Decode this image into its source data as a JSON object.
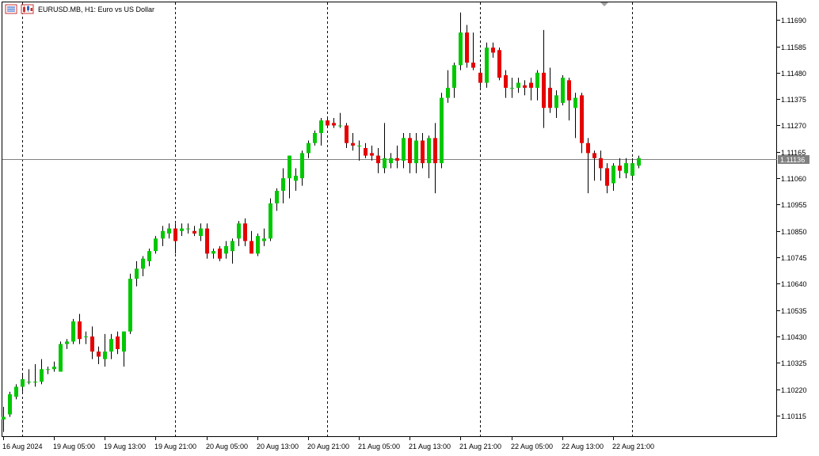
{
  "chart_data": {
    "type": "candlestick",
    "symbol": "EURUSD.MB",
    "timeframe": "H1",
    "description": "Euro vs US Dollar",
    "title": "EURUSD.MB, H1:  Euro vs US Dollar",
    "ylim": [
      1.1003,
      1.1176
    ],
    "grid": false,
    "current_price": 1.11136,
    "current_price_label": "1.11136",
    "y_ticks": [
      {
        "value": 1.1169,
        "label": "1.11690"
      },
      {
        "value": 1.11585,
        "label": "1.11585"
      },
      {
        "value": 1.1148,
        "label": "1.11480"
      },
      {
        "value": 1.11375,
        "label": "1.11375"
      },
      {
        "value": 1.1127,
        "label": "1.11270"
      },
      {
        "value": 1.11165,
        "label": "1.11165"
      },
      {
        "value": 1.1106,
        "label": "1.11060"
      },
      {
        "value": 1.10955,
        "label": "1.10955"
      },
      {
        "value": 1.1085,
        "label": "1.10850"
      },
      {
        "value": 1.10745,
        "label": "1.10745"
      },
      {
        "value": 1.1064,
        "label": "1.10640"
      },
      {
        "value": 1.10535,
        "label": "1.10535"
      },
      {
        "value": 1.1043,
        "label": "1.10430"
      },
      {
        "value": 1.10325,
        "label": "1.10325"
      },
      {
        "value": 1.1022,
        "label": "1.10220"
      },
      {
        "value": 1.10115,
        "label": "1.10115"
      }
    ],
    "x_ticks": [
      {
        "label": "16 Aug 2024",
        "bar": 0
      },
      {
        "label": "19 Aug 05:00",
        "bar": 8
      },
      {
        "label": "19 Aug 13:00",
        "bar": 16
      },
      {
        "label": "19 Aug 21:00",
        "bar": 24
      },
      {
        "label": "20 Aug 05:00",
        "bar": 32
      },
      {
        "label": "20 Aug 13:00",
        "bar": 40
      },
      {
        "label": "20 Aug 21:00",
        "bar": 48
      },
      {
        "label": "21 Aug 05:00",
        "bar": 56
      },
      {
        "label": "21 Aug 13:00",
        "bar": 64
      },
      {
        "label": "21 Aug 21:00",
        "bar": 72
      },
      {
        "label": "22 Aug 05:00",
        "bar": 80
      },
      {
        "label": "22 Aug 13:00",
        "bar": 88
      },
      {
        "label": "22 Aug 21:00",
        "bar": 96
      }
    ],
    "day_separator_bars": [
      3,
      27,
      51,
      75,
      99
    ],
    "colors": {
      "bull": "#00c800",
      "bear": "#e60000",
      "wick": "#000000",
      "axis": "#000000",
      "separator": "#000000",
      "price_line": "#808080",
      "price_tag": "#808080"
    },
    "candles": [
      {
        "o": 1.101,
        "h": 1.1015,
        "l": 1.1005,
        "c": 1.1011
      },
      {
        "o": 1.1012,
        "h": 1.1021,
        "l": 1.1011,
        "c": 1.102
      },
      {
        "o": 1.1019,
        "h": 1.1024,
        "l": 1.1018,
        "c": 1.1023
      },
      {
        "o": 1.1023,
        "h": 1.1028,
        "l": 1.1021,
        "c": 1.1026
      },
      {
        "o": 1.1025,
        "h": 1.103,
        "l": 1.1024,
        "c": 1.1025
      },
      {
        "o": 1.1025,
        "h": 1.1032,
        "l": 1.1023,
        "c": 1.1025
      },
      {
        "o": 1.1025,
        "h": 1.1034,
        "l": 1.1024,
        "c": 1.103
      },
      {
        "o": 1.103,
        "h": 1.1031,
        "l": 1.1028,
        "c": 1.103
      },
      {
        "o": 1.103,
        "h": 1.1033,
        "l": 1.1029,
        "c": 1.1031
      },
      {
        "o": 1.1029,
        "h": 1.1041,
        "l": 1.1029,
        "c": 1.104
      },
      {
        "o": 1.104,
        "h": 1.1042,
        "l": 1.1038,
        "c": 1.1041
      },
      {
        "o": 1.1041,
        "h": 1.105,
        "l": 1.104,
        "c": 1.1049
      },
      {
        "o": 1.1049,
        "h": 1.1052,
        "l": 1.104,
        "c": 1.1042
      },
      {
        "o": 1.1043,
        "h": 1.1045,
        "l": 1.104,
        "c": 1.1043
      },
      {
        "o": 1.1043,
        "h": 1.1047,
        "l": 1.1034,
        "c": 1.1037
      },
      {
        "o": 1.1037,
        "h": 1.1039,
        "l": 1.1032,
        "c": 1.1035
      },
      {
        "o": 1.1034,
        "h": 1.1044,
        "l": 1.1031,
        "c": 1.1037
      },
      {
        "o": 1.1037,
        "h": 1.1044,
        "l": 1.1034,
        "c": 1.1042
      },
      {
        "o": 1.1043,
        "h": 1.1045,
        "l": 1.1036,
        "c": 1.1038
      },
      {
        "o": 1.1037,
        "h": 1.1045,
        "l": 1.1031,
        "c": 1.1045
      },
      {
        "o": 1.1045,
        "h": 1.1068,
        "l": 1.1044,
        "c": 1.1066
      },
      {
        "o": 1.1066,
        "h": 1.1073,
        "l": 1.1063,
        "c": 1.107
      },
      {
        "o": 1.107,
        "h": 1.1075,
        "l": 1.1067,
        "c": 1.1074
      },
      {
        "o": 1.1073,
        "h": 1.1078,
        "l": 1.1071,
        "c": 1.1077
      },
      {
        "o": 1.1077,
        "h": 1.1083,
        "l": 1.1076,
        "c": 1.1082
      },
      {
        "o": 1.1082,
        "h": 1.1087,
        "l": 1.1079,
        "c": 1.1085
      },
      {
        "o": 1.1084,
        "h": 1.1088,
        "l": 1.1082,
        "c": 1.1086
      },
      {
        "o": 1.1086,
        "h": 1.1088,
        "l": 1.1076,
        "c": 1.1081
      },
      {
        "o": 1.1085,
        "h": 1.1088,
        "l": 1.1083,
        "c": 1.1086
      },
      {
        "o": 1.1086,
        "h": 1.1088,
        "l": 1.1084,
        "c": 1.1086
      },
      {
        "o": 1.1085,
        "h": 1.1087,
        "l": 1.1083,
        "c": 1.1084
      },
      {
        "o": 1.1083,
        "h": 1.1088,
        "l": 1.1081,
        "c": 1.1086
      },
      {
        "o": 1.1086,
        "h": 1.1088,
        "l": 1.1074,
        "c": 1.1076
      },
      {
        "o": 1.1076,
        "h": 1.1078,
        "l": 1.1074,
        "c": 1.1077
      },
      {
        "o": 1.1078,
        "h": 1.1079,
        "l": 1.1073,
        "c": 1.1074
      },
      {
        "o": 1.1076,
        "h": 1.1081,
        "l": 1.1074,
        "c": 1.1079
      },
      {
        "o": 1.1077,
        "h": 1.1082,
        "l": 1.1072,
        "c": 1.1081
      },
      {
        "o": 1.1082,
        "h": 1.1089,
        "l": 1.1079,
        "c": 1.1088
      },
      {
        "o": 1.1088,
        "h": 1.109,
        "l": 1.1079,
        "c": 1.1081
      },
      {
        "o": 1.1081,
        "h": 1.1085,
        "l": 1.1076,
        "c": 1.1076
      },
      {
        "o": 1.1076,
        "h": 1.1084,
        "l": 1.1075,
        "c": 1.1083
      },
      {
        "o": 1.1081,
        "h": 1.1086,
        "l": 1.1079,
        "c": 1.1082
      },
      {
        "o": 1.1082,
        "h": 1.1098,
        "l": 1.1081,
        "c": 1.1096
      },
      {
        "o": 1.1096,
        "h": 1.1102,
        "l": 1.1093,
        "c": 1.1101
      },
      {
        "o": 1.1101,
        "h": 1.111,
        "l": 1.1096,
        "c": 1.1106
      },
      {
        "o": 1.1106,
        "h": 1.1115,
        "l": 1.1098,
        "c": 1.1115
      },
      {
        "o": 1.1105,
        "h": 1.111,
        "l": 1.1101,
        "c": 1.1107
      },
      {
        "o": 1.1106,
        "h": 1.1117,
        "l": 1.1103,
        "c": 1.1116
      },
      {
        "o": 1.1116,
        "h": 1.1121,
        "l": 1.1114,
        "c": 1.112
      },
      {
        "o": 1.112,
        "h": 1.1125,
        "l": 1.1119,
        "c": 1.1124
      },
      {
        "o": 1.1124,
        "h": 1.113,
        "l": 1.1119,
        "c": 1.1129
      },
      {
        "o": 1.1129,
        "h": 1.113,
        "l": 1.1126,
        "c": 1.1127
      },
      {
        "o": 1.1128,
        "h": 1.113,
        "l": 1.1126,
        "c": 1.1127
      },
      {
        "o": 1.1127,
        "h": 1.1132,
        "l": 1.1126,
        "c": 1.1127
      },
      {
        "o": 1.1127,
        "h": 1.1128,
        "l": 1.1118,
        "c": 1.112
      },
      {
        "o": 1.112,
        "h": 1.1124,
        "l": 1.1117,
        "c": 1.1119
      },
      {
        "o": 1.1119,
        "h": 1.1121,
        "l": 1.1113,
        "c": 1.1119
      },
      {
        "o": 1.1118,
        "h": 1.112,
        "l": 1.1114,
        "c": 1.1115
      },
      {
        "o": 1.1116,
        "h": 1.1119,
        "l": 1.1113,
        "c": 1.1115
      },
      {
        "o": 1.1115,
        "h": 1.1118,
        "l": 1.1108,
        "c": 1.1112
      },
      {
        "o": 1.111,
        "h": 1.1128,
        "l": 1.1108,
        "c": 1.1114
      },
      {
        "o": 1.1112,
        "h": 1.1116,
        "l": 1.111,
        "c": 1.1114
      },
      {
        "o": 1.1114,
        "h": 1.1119,
        "l": 1.111,
        "c": 1.1113
      },
      {
        "o": 1.1113,
        "h": 1.1124,
        "l": 1.111,
        "c": 1.1122
      },
      {
        "o": 1.1122,
        "h": 1.1124,
        "l": 1.1108,
        "c": 1.1112
      },
      {
        "o": 1.1112,
        "h": 1.1124,
        "l": 1.1108,
        "c": 1.1121
      },
      {
        "o": 1.1121,
        "h": 1.1124,
        "l": 1.111,
        "c": 1.1112
      },
      {
        "o": 1.1112,
        "h": 1.1123,
        "l": 1.1106,
        "c": 1.1122
      },
      {
        "o": 1.1122,
        "h": 1.1128,
        "l": 1.11,
        "c": 1.1112
      },
      {
        "o": 1.1112,
        "h": 1.114,
        "l": 1.111,
        "c": 1.1138
      },
      {
        "o": 1.1138,
        "h": 1.1149,
        "l": 1.1136,
        "c": 1.1142
      },
      {
        "o": 1.1142,
        "h": 1.1152,
        "l": 1.1138,
        "c": 1.1151
      },
      {
        "o": 1.1151,
        "h": 1.1172,
        "l": 1.1149,
        "c": 1.1164
      },
      {
        "o": 1.1164,
        "h": 1.1167,
        "l": 1.115,
        "c": 1.1152
      },
      {
        "o": 1.1152,
        "h": 1.1164,
        "l": 1.1149,
        "c": 1.115
      },
      {
        "o": 1.1148,
        "h": 1.115,
        "l": 1.1142,
        "c": 1.1144
      },
      {
        "o": 1.1144,
        "h": 1.116,
        "l": 1.1142,
        "c": 1.1158
      },
      {
        "o": 1.1158,
        "h": 1.116,
        "l": 1.1154,
        "c": 1.1156
      },
      {
        "o": 1.1157,
        "h": 1.1158,
        "l": 1.1145,
        "c": 1.1146
      },
      {
        "o": 1.1147,
        "h": 1.1149,
        "l": 1.1138,
        "c": 1.1142
      },
      {
        "o": 1.1142,
        "h": 1.1146,
        "l": 1.1138,
        "c": 1.1142
      },
      {
        "o": 1.1142,
        "h": 1.1146,
        "l": 1.114,
        "c": 1.1144
      },
      {
        "o": 1.1143,
        "h": 1.1145,
        "l": 1.1139,
        "c": 1.1142
      },
      {
        "o": 1.1144,
        "h": 1.1146,
        "l": 1.1137,
        "c": 1.1142
      },
      {
        "o": 1.1142,
        "h": 1.1149,
        "l": 1.1137,
        "c": 1.1148
      },
      {
        "o": 1.1148,
        "h": 1.1165,
        "l": 1.1126,
        "c": 1.1134
      },
      {
        "o": 1.1142,
        "h": 1.115,
        "l": 1.1132,
        "c": 1.1134
      },
      {
        "o": 1.1134,
        "h": 1.1141,
        "l": 1.113,
        "c": 1.1139
      },
      {
        "o": 1.1136,
        "h": 1.1147,
        "l": 1.1135,
        "c": 1.1146
      },
      {
        "o": 1.1145,
        "h": 1.1146,
        "l": 1.1129,
        "c": 1.1137
      },
      {
        "o": 1.1134,
        "h": 1.114,
        "l": 1.1122,
        "c": 1.1138
      },
      {
        "o": 1.1139,
        "h": 1.114,
        "l": 1.1116,
        "c": 1.112
      },
      {
        "o": 1.112,
        "h": 1.1122,
        "l": 1.11,
        "c": 1.1116
      },
      {
        "o": 1.1116,
        "h": 1.1117,
        "l": 1.1105,
        "c": 1.1114
      },
      {
        "o": 1.1114,
        "h": 1.1117,
        "l": 1.1105,
        "c": 1.111
      },
      {
        "o": 1.111,
        "h": 1.1112,
        "l": 1.11,
        "c": 1.1103
      },
      {
        "o": 1.1104,
        "h": 1.1112,
        "l": 1.1101,
        "c": 1.1111
      },
      {
        "o": 1.1111,
        "h": 1.1114,
        "l": 1.1106,
        "c": 1.1109
      },
      {
        "o": 1.1108,
        "h": 1.1114,
        "l": 1.1106,
        "c": 1.1112
      },
      {
        "o": 1.1107,
        "h": 1.1114,
        "l": 1.1105,
        "c": 1.1112
      },
      {
        "o": 1.1111,
        "h": 1.1115,
        "l": 1.111,
        "c": 1.1114
      }
    ]
  }
}
